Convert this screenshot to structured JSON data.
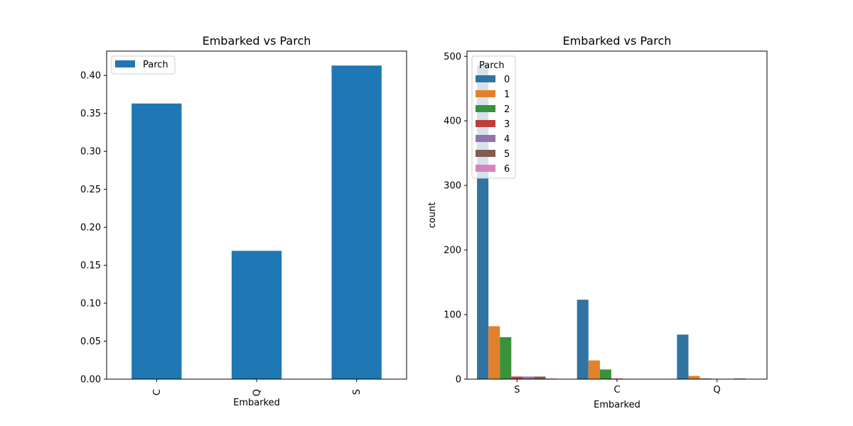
{
  "chart_data": [
    {
      "type": "bar",
      "title": "Embarked vs Parch",
      "xlabel": "Embarked",
      "ylabel": "",
      "categories": [
        "C",
        "Q",
        "S"
      ],
      "series": [
        {
          "name": "Parch",
          "values": [
            0.363,
            0.169,
            0.413
          ]
        }
      ],
      "ylim": [
        0,
        0.432
      ],
      "yticks": [
        "0.00",
        "0.05",
        "0.10",
        "0.15",
        "0.20",
        "0.25",
        "0.30",
        "0.35",
        "0.40"
      ],
      "legend_position": "top-left",
      "grid": false,
      "color": "#1f77b4"
    },
    {
      "type": "bar",
      "title": "Embarked vs Parch",
      "xlabel": "Embarked",
      "ylabel": "count",
      "categories": [
        "S",
        "C",
        "Q"
      ],
      "legend_title": "Parch",
      "legend_position": "top-left",
      "grid": false,
      "ylim": [
        0,
        508
      ],
      "yticks": [
        "0",
        "100",
        "200",
        "300",
        "400",
        "500"
      ],
      "series": [
        {
          "name": "0",
          "color": "#3274a1",
          "values": [
            486,
            123,
            69
          ]
        },
        {
          "name": "1",
          "color": "#e1812c",
          "values": [
            82,
            29,
            5
          ]
        },
        {
          "name": "2",
          "color": "#3a923a",
          "values": [
            65,
            15,
            1
          ]
        },
        {
          "name": "3",
          "color": "#c03d3e",
          "values": [
            4,
            1,
            0
          ]
        },
        {
          "name": "4",
          "color": "#9372b2",
          "values": [
            4,
            0,
            0
          ]
        },
        {
          "name": "5",
          "color": "#845b53",
          "values": [
            4,
            0,
            1
          ]
        },
        {
          "name": "6",
          "color": "#d684bd",
          "values": [
            1,
            0,
            0
          ]
        }
      ]
    }
  ]
}
